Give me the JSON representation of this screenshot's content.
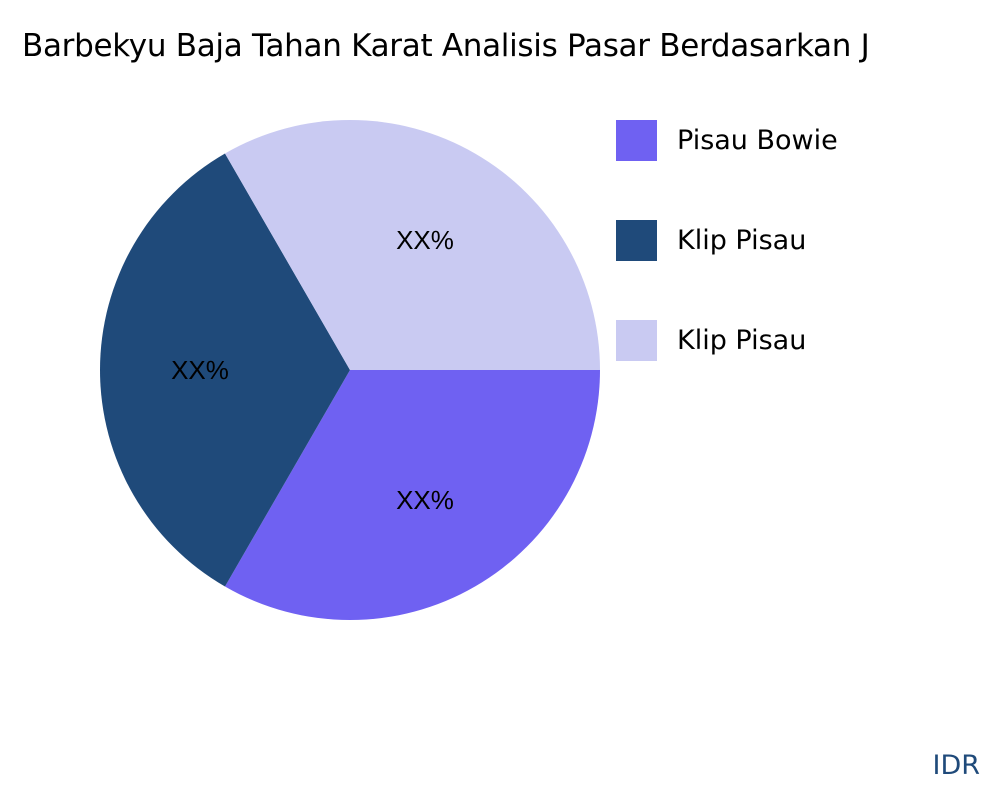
{
  "chart_data": {
    "type": "pie",
    "title": "Barbekyu Baja Tahan Karat Analisis Pasar Berdasarkan J",
    "slices": [
      {
        "label": "Pisau Bowie",
        "value": 33.33,
        "data_label": "XX%",
        "color": "#6f61f2"
      },
      {
        "label": "Klip Pisau",
        "value": 33.33,
        "data_label": "XX%",
        "color": "#1f4a7a"
      },
      {
        "label": "Klip Pisau",
        "value": 33.33,
        "data_label": "XX%",
        "color": "#c9caf2"
      }
    ],
    "legend_position": "right"
  },
  "brand": "IDR"
}
